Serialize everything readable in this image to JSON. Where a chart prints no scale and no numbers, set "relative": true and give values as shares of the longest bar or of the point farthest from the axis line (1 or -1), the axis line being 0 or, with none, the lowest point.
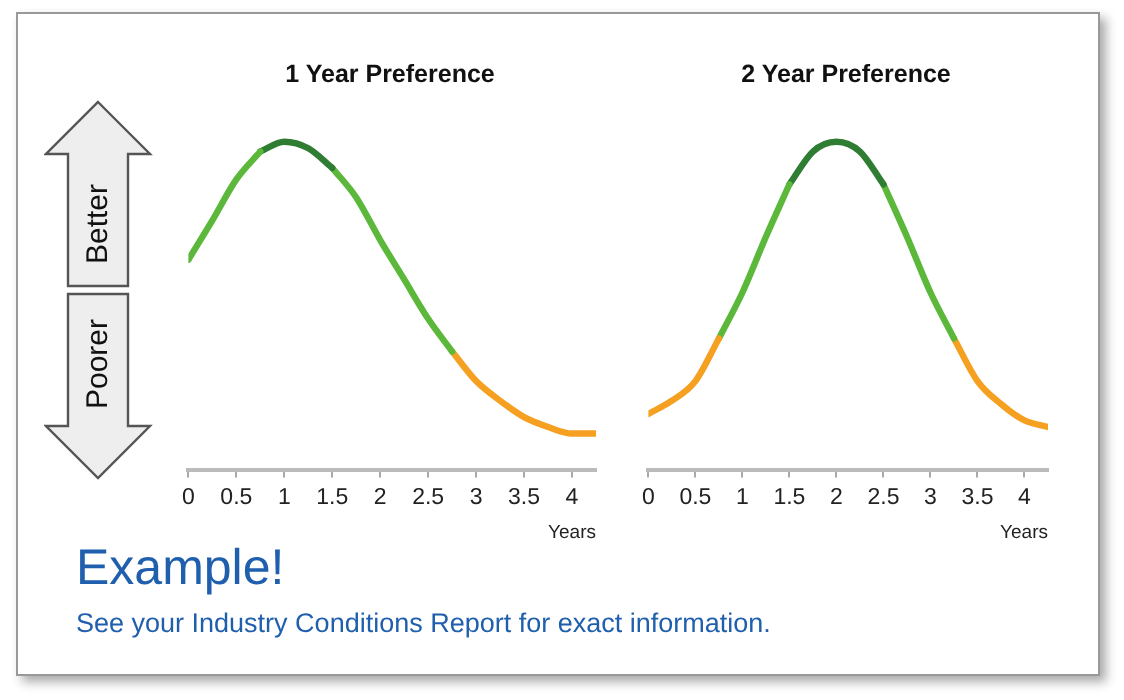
{
  "chart_data": [
    {
      "type": "line",
      "title": "1 Year Preference",
      "xlabel": "Years",
      "relative": true,
      "xlim": [
        0,
        4.25
      ],
      "xticks": [
        0,
        0.5,
        1,
        1.5,
        2,
        2.5,
        3,
        3.5,
        4
      ],
      "grid": false,
      "legend": false,
      "annotations": [
        "Better",
        "Poorer",
        "Example!",
        "See your Industry Conditions Report for exact information."
      ],
      "series": [
        {
          "color": "#5cb83a",
          "x": [
            0,
            0.25,
            0.5,
            0.75
          ],
          "values": [
            0.64,
            0.76,
            0.885,
            0.97
          ]
        },
        {
          "color": "#2e7d32",
          "x": [
            0.75,
            1,
            1.25,
            1.5
          ],
          "values": [
            0.97,
            1,
            0.98,
            0.92
          ]
        },
        {
          "color": "#5cb83a",
          "x": [
            1.5,
            1.75,
            2,
            2.25,
            2.5,
            2.75
          ],
          "values": [
            0.92,
            0.83,
            0.7,
            0.58,
            0.46,
            0.36
          ]
        },
        {
          "color": "#f5a021",
          "x": [
            2.75,
            3,
            3.25,
            3.5,
            3.75,
            4,
            4.25
          ],
          "values": [
            0.36,
            0.27,
            0.21,
            0.16,
            0.13,
            0.11,
            0.11
          ]
        }
      ]
    },
    {
      "type": "line",
      "title": "2 Year Preference",
      "xlabel": "Years",
      "relative": true,
      "xlim": [
        0,
        4.25
      ],
      "xticks": [
        0,
        0.5,
        1,
        1.5,
        2,
        2.5,
        3,
        3.5,
        4
      ],
      "grid": false,
      "legend": false,
      "series": [
        {
          "color": "#f5a021",
          "x": [
            0,
            0.25,
            0.5,
            0.75
          ],
          "values": [
            0.17,
            0.21,
            0.27,
            0.4
          ]
        },
        {
          "color": "#5cb83a",
          "x": [
            0.75,
            1,
            1.25,
            1.5
          ],
          "values": [
            0.4,
            0.54,
            0.71,
            0.87
          ]
        },
        {
          "color": "#2e7d32",
          "x": [
            1.5,
            1.75,
            2,
            2.25,
            2.5
          ],
          "values": [
            0.87,
            0.97,
            1,
            0.97,
            0.87
          ]
        },
        {
          "color": "#5cb83a",
          "x": [
            2.5,
            2.75,
            3,
            3.25
          ],
          "values": [
            0.87,
            0.71,
            0.54,
            0.4
          ]
        },
        {
          "color": "#f5a021",
          "x": [
            3.25,
            3.5,
            3.75,
            4,
            4.25
          ],
          "values": [
            0.4,
            0.27,
            0.2,
            0.15,
            0.13
          ]
        }
      ]
    }
  ]
}
